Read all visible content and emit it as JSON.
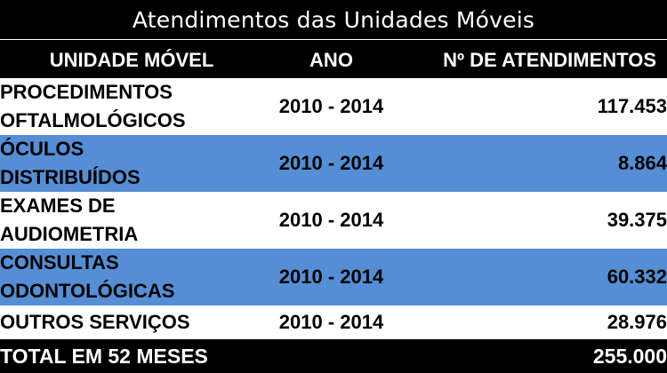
{
  "title": "Atendimentos das Unidades Móveis",
  "headers": {
    "unit": "UNIDADE MÓVEL",
    "year": "ANO",
    "count": "Nº DE ATENDIMENTOS"
  },
  "rows": [
    {
      "name": "PROCEDIMENTOS\nOFTALMOLÓGICOS",
      "year": "2010 - 2014",
      "count": "117.453"
    },
    {
      "name": "ÓCULOS\nDISTRIBUÍDOS",
      "year": "2010 - 2014",
      "count": "8.864"
    },
    {
      "name": "EXAMES DE\nAUDIOMETRIA",
      "year": "2010 - 2014",
      "count": "39.375"
    },
    {
      "name": "CONSULTAS\nODONTOLÓGICAS",
      "year": "2010 - 2014",
      "count": "60.332"
    },
    {
      "name": "OUTROS SERVIÇOS",
      "year": "2010 - 2014",
      "count": "28.976"
    }
  ],
  "total": {
    "label": "TOTAL EM 52 MESES",
    "count": "255.000"
  },
  "colors": {
    "header_bg": "#000000",
    "band_blue": "#558ed5",
    "band_white": "#ffffff"
  }
}
